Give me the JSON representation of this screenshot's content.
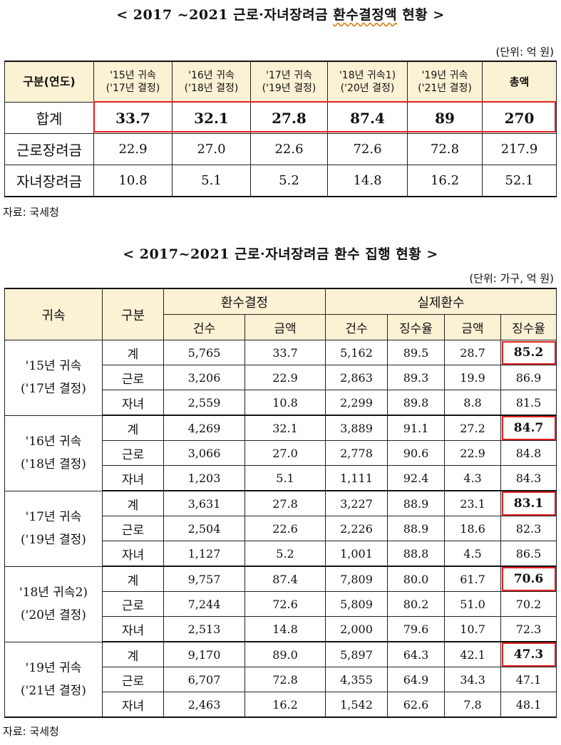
{
  "table1": {
    "title_a": "< 2017 ~2021 근로·자녀장려금 ",
    "title_b": "환수결정액",
    "title_c": " 현황 >",
    "unit": "(단위: 억 원)",
    "headers": [
      {
        "l1": "구분(연도)",
        "l2": ""
      },
      {
        "l1": "'15년 귀속",
        "l2": "('17년 결정)"
      },
      {
        "l1": "'16년 귀속",
        "l2": "('18년 결정)"
      },
      {
        "l1": "'17년 귀속",
        "l2": "('19년 결정)"
      },
      {
        "l1": "'18년 귀속1)",
        "l2": "('20년 결정)"
      },
      {
        "l1": "'19년 귀속",
        "l2": "('21년 결정)"
      },
      {
        "l1": "총액",
        "l2": ""
      }
    ],
    "rows": [
      {
        "label": "합계",
        "values": [
          "33.7",
          "32.1",
          "27.8",
          "87.4",
          "89",
          "270"
        ]
      },
      {
        "label": "근로장려금",
        "values": [
          "22.9",
          "27.0",
          "22.6",
          "72.6",
          "72.8",
          "217.9"
        ]
      },
      {
        "label": "자녀장려금",
        "values": [
          "10.8",
          "5.1",
          "5.2",
          "14.8",
          "16.2",
          "52.1"
        ]
      }
    ],
    "source": "자료: 국세청"
  },
  "table2": {
    "title": "< 2017~2021 근로·자녀장려금 환수 집행 현황 >",
    "unit": "(단위: 가구, 억 원)",
    "head": {
      "col_year": "귀속",
      "col_type": "구분",
      "group_decision": "환수결정",
      "group_actual": "실제환수",
      "sub": [
        "건수",
        "금액",
        "건수",
        "징수율",
        "금액",
        "징수율"
      ]
    },
    "groups": [
      {
        "line1": "'15년 귀속",
        "line2": "('17년 결정)",
        "rows": [
          {
            "type": "계",
            "v": [
              "5,765",
              "33.7",
              "5,162",
              "89.5",
              "28.7",
              "85.2"
            ]
          },
          {
            "type": "근로",
            "v": [
              "3,206",
              "22.9",
              "2,863",
              "89.3",
              "19.9",
              "86.9"
            ]
          },
          {
            "type": "자녀",
            "v": [
              "2,559",
              "10.8",
              "2,299",
              "89.8",
              "8.8",
              "81.5"
            ]
          }
        ]
      },
      {
        "line1": "'16년 귀속",
        "line2": "('18년 결정)",
        "rows": [
          {
            "type": "계",
            "v": [
              "4,269",
              "32.1",
              "3,889",
              "91.1",
              "27.2",
              "84.7"
            ]
          },
          {
            "type": "근로",
            "v": [
              "3,066",
              "27.0",
              "2,778",
              "90.6",
              "22.9",
              "84.8"
            ]
          },
          {
            "type": "자녀",
            "v": [
              "1,203",
              "5.1",
              "1,111",
              "92.4",
              "4.3",
              "84.3"
            ]
          }
        ]
      },
      {
        "line1": "'17년 귀속",
        "line2": "('19년 결정)",
        "rows": [
          {
            "type": "계",
            "v": [
              "3,631",
              "27.8",
              "3,227",
              "88.9",
              "23.1",
              "83.1"
            ]
          },
          {
            "type": "근로",
            "v": [
              "2,504",
              "22.6",
              "2,226",
              "88.9",
              "18.6",
              "82.3"
            ]
          },
          {
            "type": "자녀",
            "v": [
              "1,127",
              "5.2",
              "1,001",
              "88.8",
              "4.5",
              "86.5"
            ]
          }
        ]
      },
      {
        "line1": "'18년 귀속2)",
        "line2": "('20년 결정)",
        "rows": [
          {
            "type": "계",
            "v": [
              "9,757",
              "87.4",
              "7,809",
              "80.0",
              "61.7",
              "70.6"
            ]
          },
          {
            "type": "근로",
            "v": [
              "7,244",
              "72.6",
              "5,809",
              "80.2",
              "51.0",
              "70.2"
            ]
          },
          {
            "type": "자녀",
            "v": [
              "2,513",
              "14.8",
              "2,000",
              "79.6",
              "10.7",
              "72.3"
            ]
          }
        ]
      },
      {
        "line1": "'19년 귀속",
        "line2": "('21년 결정)",
        "rows": [
          {
            "type": "계",
            "v": [
              "9,170",
              "89.0",
              "5,897",
              "64.3",
              "42.1",
              "47.3"
            ]
          },
          {
            "type": "근로",
            "v": [
              "6,707",
              "72.8",
              "4,355",
              "64.9",
              "34.3",
              "47.1"
            ]
          },
          {
            "type": "자녀",
            "v": [
              "2,463",
              "16.2",
              "1,542",
              "62.6",
              "7.8",
              "48.1"
            ]
          }
        ]
      }
    ],
    "source": "자료: 국세청"
  },
  "colors": {
    "highlight": "#e02020",
    "header_bg": "#fbf1d4"
  }
}
